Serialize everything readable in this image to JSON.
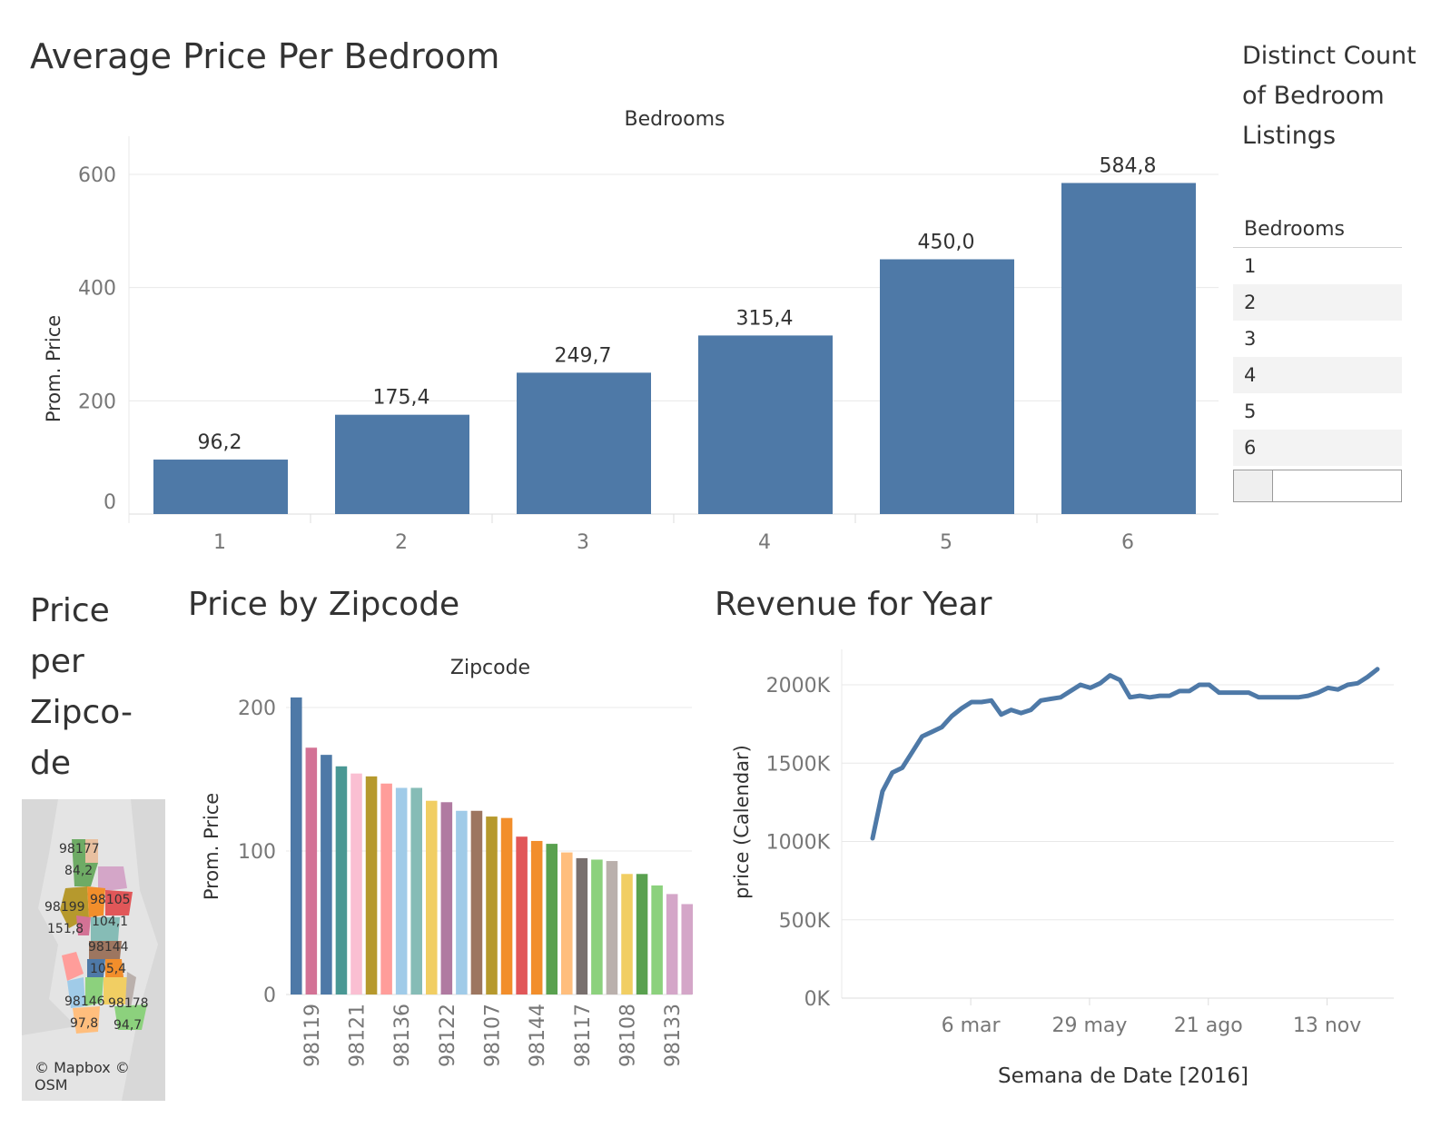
{
  "titles": {
    "bedroom_chart": "Average Price Per Bedroom",
    "distinct_count": "Distinct Count of Bedroom Listings",
    "map": "Price per Zipco-de",
    "zipcode_chart": "Price by Zipcode",
    "revenue_chart": "Revenue for Year"
  },
  "legend": {
    "header": "Bedrooms",
    "items": [
      "1",
      "2",
      "3",
      "4",
      "5",
      "6"
    ]
  },
  "map": {
    "credit": "© Mapbox © OSM",
    "labels": [
      {
        "text": "98177"
      },
      {
        "text": "84,2"
      },
      {
        "text": "98199"
      },
      {
        "text": "98105"
      },
      {
        "text": "151,8"
      },
      {
        "text": "104,1"
      },
      {
        "text": "98144"
      },
      {
        "text": "105,4"
      },
      {
        "text": "98146"
      },
      {
        "text": "98178"
      },
      {
        "text": "97,8"
      },
      {
        "text": "94,7"
      }
    ]
  },
  "chart_data": [
    {
      "type": "bar",
      "title": "Average Price Per Bedroom",
      "header": "Bedrooms",
      "ylabel": "Prom. Price",
      "categories": [
        "1",
        "2",
        "3",
        "4",
        "5",
        "6"
      ],
      "values": [
        96.2,
        175.4,
        249.7,
        315.4,
        450.0,
        584.8
      ],
      "value_labels": [
        "96,2",
        "175,4",
        "249,7",
        "315,4",
        "450,0",
        "584,8"
      ],
      "ylim": [
        0,
        600
      ],
      "yticks": [
        0,
        200,
        400,
        600
      ],
      "color": "#4e79a7",
      "grid": true
    },
    {
      "type": "bar",
      "title": "Price by Zipcode",
      "header": "Zipcode",
      "ylabel": "Prom. Price",
      "ylim": [
        0,
        200
      ],
      "yticks": [
        0,
        100,
        200
      ],
      "tick_labels": [
        "98119",
        "98121",
        "98136",
        "98122",
        "98107",
        "98144",
        "98117",
        "98108",
        "98133"
      ],
      "values": [
        207,
        172,
        167,
        159,
        154,
        152,
        147,
        144,
        144,
        135,
        134,
        128,
        128,
        124,
        123,
        110,
        107,
        105,
        99,
        95,
        94,
        93,
        84,
        84,
        76,
        70,
        63
      ],
      "colors": [
        "#4e79a7",
        "#d37295",
        "#4e79a7",
        "#499894",
        "#fabfd2",
        "#b6992d",
        "#ff9d9a",
        "#a0cbe8",
        "#86bcb6",
        "#f1ce63",
        "#b07aa1",
        "#a0cbe8",
        "#9d7660",
        "#b6992d",
        "#f28e2b",
        "#e15759",
        "#f28e2b",
        "#59a14f",
        "#ffbe7d",
        "#79706e",
        "#8cd17d",
        "#bab0ac",
        "#f1ce63",
        "#59a14f",
        "#8cd17d",
        "#d4a6c8",
        "#d4a6c8"
      ],
      "grid": true
    },
    {
      "type": "line",
      "title": "Revenue for Year",
      "xlabel": "Semana de Date [2016]",
      "ylabel": "price (Calendar)",
      "yticks": [
        "0K",
        "500K",
        "1000K",
        "1500K",
        "2000K"
      ],
      "ylim": [
        0,
        2000000
      ],
      "xticks": [
        "6 mar",
        "29 may",
        "21 ago",
        "13 nov"
      ],
      "x_week_index": [
        0,
        1,
        2,
        3,
        4,
        5,
        6,
        7,
        8,
        9,
        10,
        11,
        12,
        13,
        14,
        15,
        16,
        17,
        18,
        19,
        20,
        21,
        22,
        23,
        24,
        25,
        26,
        27,
        28,
        29,
        30,
        31,
        32,
        33,
        34,
        35,
        36,
        37,
        38,
        39,
        40,
        41,
        42,
        43,
        44,
        45,
        46,
        47,
        48,
        49,
        50,
        51
      ],
      "values": [
        1020000,
        1320000,
        1440000,
        1470000,
        1570000,
        1670000,
        1700000,
        1730000,
        1800000,
        1850000,
        1890000,
        1890000,
        1900000,
        1810000,
        1840000,
        1820000,
        1840000,
        1900000,
        1910000,
        1920000,
        1960000,
        2000000,
        1980000,
        2010000,
        2060000,
        2030000,
        1920000,
        1930000,
        1920000,
        1930000,
        1930000,
        1960000,
        1960000,
        2000000,
        2000000,
        1950000,
        1950000,
        1950000,
        1950000,
        1920000,
        1920000,
        1920000,
        1920000,
        1920000,
        1930000,
        1950000,
        1980000,
        1970000,
        2000000,
        2010000,
        2050000,
        2100000
      ],
      "color": "#4e79a7",
      "grid": true
    }
  ]
}
